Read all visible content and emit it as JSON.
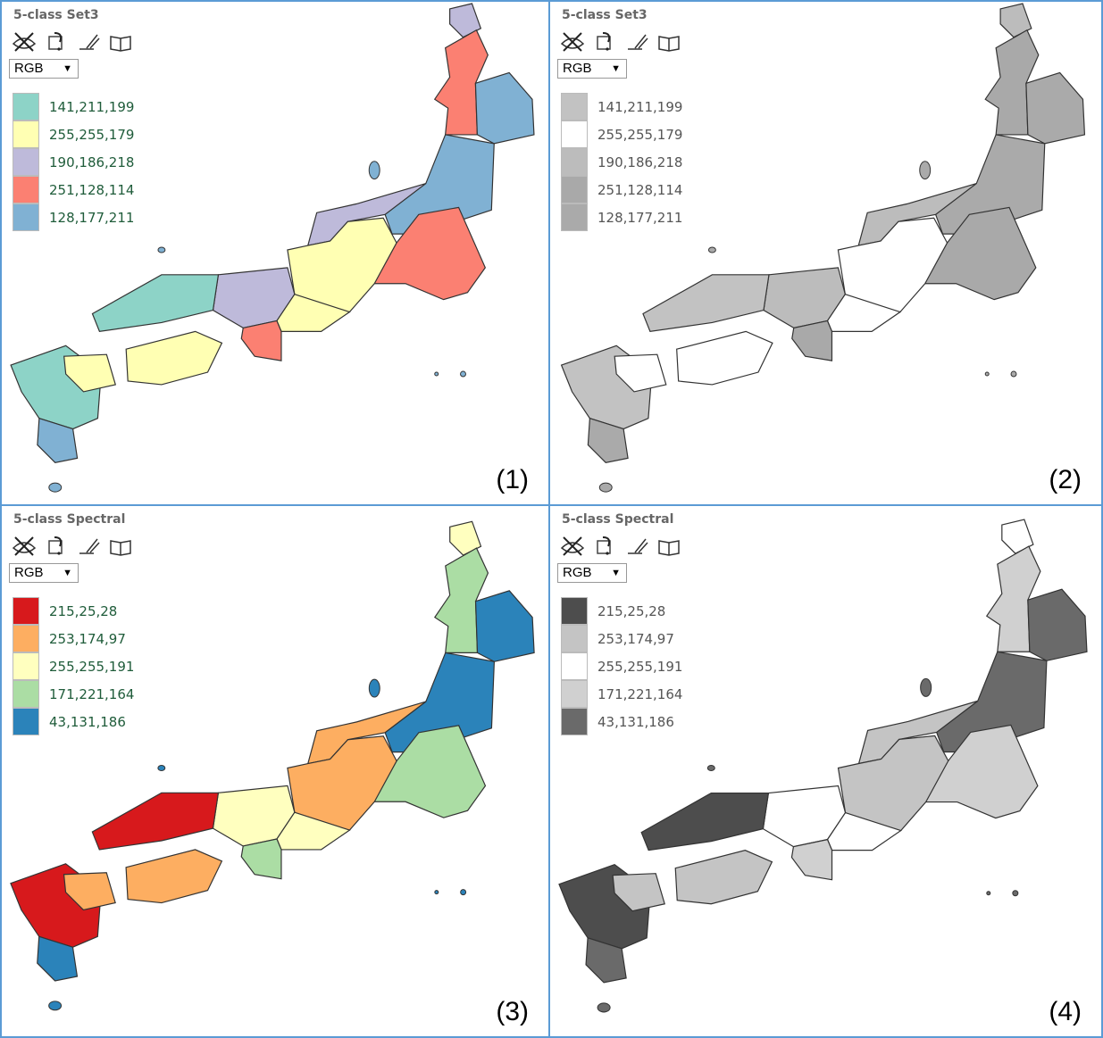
{
  "panels": [
    {
      "title": "5-class Set3",
      "select": "RGB",
      "number": "(1)",
      "grey": false,
      "legend": [
        {
          "label": "141,211,199",
          "color": "#8dd3c7"
        },
        {
          "label": "255,255,179",
          "color": "#ffffb3"
        },
        {
          "label": "190,186,218",
          "color": "#bebada"
        },
        {
          "label": "251,128,114",
          "color": "#fb8072"
        },
        {
          "label": "128,177,211",
          "color": "#80b1d3"
        }
      ],
      "region_colors": {
        "hokkaido": "#bebada",
        "tohoku_w": "#fb8072",
        "tohoku_e": "#80b1d3",
        "kanto": "#fb8072",
        "kanto_n": "#80b1d3",
        "hokuriku": "#bebada",
        "chubu": "#ffffb3",
        "kinki": "#bebada",
        "kinki_s": "#ffffb3",
        "kii": "#fb8072",
        "chugoku": "#8dd3c7",
        "shikoku": "#ffffb3",
        "kyushu": "#8dd3c7",
        "kyushu_s": "#80b1d3"
      }
    },
    {
      "title": "5-class Set3",
      "select": "RGB",
      "number": "(2)",
      "grey": true,
      "legend": [
        {
          "label": "141,211,199",
          "color": "#c2c2c2"
        },
        {
          "label": "255,255,179",
          "color": "#ffffff"
        },
        {
          "label": "190,186,218",
          "color": "#bcbcbc"
        },
        {
          "label": "251,128,114",
          "color": "#a9a9a9"
        },
        {
          "label": "128,177,211",
          "color": "#aaaaaa"
        }
      ],
      "region_colors": {
        "hokkaido": "#bcbcbc",
        "tohoku_w": "#a9a9a9",
        "tohoku_e": "#aaaaaa",
        "kanto": "#a9a9a9",
        "kanto_n": "#aaaaaa",
        "hokuriku": "#bcbcbc",
        "chubu": "#ffffff",
        "kinki": "#bcbcbc",
        "kinki_s": "#ffffff",
        "kii": "#a9a9a9",
        "chugoku": "#c2c2c2",
        "shikoku": "#ffffff",
        "kyushu": "#c2c2c2",
        "kyushu_s": "#aaaaaa"
      }
    },
    {
      "title": "5-class Spectral",
      "select": "RGB",
      "number": "(3)",
      "grey": false,
      "legend": [
        {
          "label": "215,25,28",
          "color": "#d7191c"
        },
        {
          "label": "253,174,97",
          "color": "#fdae61"
        },
        {
          "label": "255,255,191",
          "color": "#ffffbf"
        },
        {
          "label": "171,221,164",
          "color": "#abdda4"
        },
        {
          "label": "43,131,186",
          "color": "#2b83ba"
        }
      ],
      "region_colors": {
        "hokkaido": "#ffffbf",
        "tohoku_w": "#abdda4",
        "tohoku_e": "#2b83ba",
        "kanto": "#abdda4",
        "kanto_n": "#2b83ba",
        "hokuriku": "#fdae61",
        "chubu": "#fdae61",
        "kinki": "#ffffbf",
        "kinki_s": "#ffffbf",
        "kii": "#abdda4",
        "chugoku": "#d7191c",
        "shikoku": "#fdae61",
        "kyushu": "#d7191c",
        "kyushu_s": "#2b83ba"
      }
    },
    {
      "title": "5-class Spectral",
      "select": "RGB",
      "number": "(4)",
      "grey": true,
      "legend": [
        {
          "label": "215,25,28",
          "color": "#4d4d4d"
        },
        {
          "label": "253,174,97",
          "color": "#c4c4c4"
        },
        {
          "label": "255,255,191",
          "color": "#ffffff"
        },
        {
          "label": "171,221,164",
          "color": "#d0d0d0"
        },
        {
          "label": "43,131,186",
          "color": "#6a6a6a"
        }
      ],
      "region_colors": {
        "hokkaido": "#ffffff",
        "tohoku_w": "#d0d0d0",
        "tohoku_e": "#6a6a6a",
        "kanto": "#d0d0d0",
        "kanto_n": "#6a6a6a",
        "hokuriku": "#c4c4c4",
        "chubu": "#c4c4c4",
        "kinki": "#ffffff",
        "kinki_s": "#ffffff",
        "kii": "#d0d0d0",
        "chugoku": "#4d4d4d",
        "shikoku": "#c4c4c4",
        "kyushu": "#4d4d4d",
        "kyushu_s": "#6a6a6a"
      }
    }
  ],
  "toolbar_icons": [
    "eye-icon",
    "swap-icon",
    "help-pen-icon",
    "book-icon"
  ]
}
